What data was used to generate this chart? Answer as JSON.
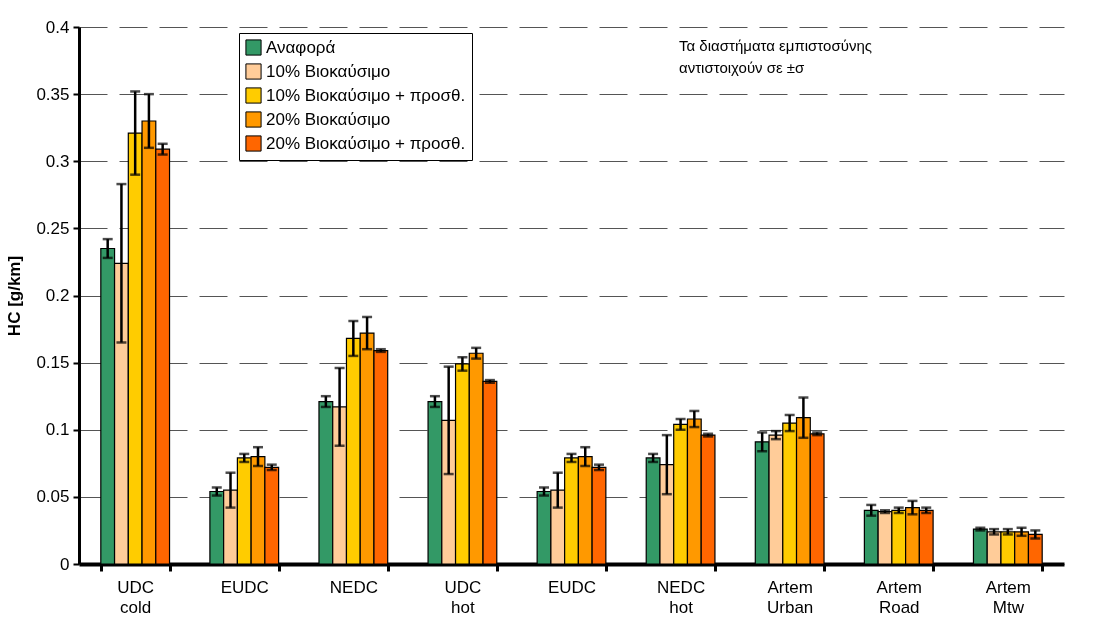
{
  "chart_data": {
    "type": "bar",
    "ylabel": "HC [g/km]",
    "categories": [
      "UDC cold",
      "EUDC",
      "NEDC",
      "UDC hot",
      "EUDC",
      "NEDC hot",
      "Artem Urban",
      "Artem Road",
      "Artem Mtw"
    ],
    "series": [
      {
        "name": "Αναφορά",
        "color": "#339966",
        "values": [
          0.235,
          0.054,
          0.121,
          0.121,
          0.054,
          0.079,
          0.091,
          0.04,
          0.026
        ],
        "errors": [
          0.007,
          0.003,
          0.004,
          0.004,
          0.003,
          0.003,
          0.007,
          0.004,
          0.001
        ]
      },
      {
        "name": "10% Βιοκαύσιμο",
        "color": "#ffcc99",
        "values": [
          0.224,
          0.055,
          0.117,
          0.107,
          0.055,
          0.074,
          0.096,
          0.039,
          0.024
        ],
        "errors": [
          0.059,
          0.013,
          0.029,
          0.04,
          0.013,
          0.022,
          0.003,
          0.001,
          0.002
        ]
      },
      {
        "name": "10% Βιοκαύσιμο + προσθ.",
        "color": "#ffcc00",
        "values": [
          0.321,
          0.079,
          0.168,
          0.149,
          0.079,
          0.104,
          0.105,
          0.04,
          0.024
        ],
        "errors": [
          0.031,
          0.003,
          0.013,
          0.005,
          0.003,
          0.004,
          0.006,
          0.002,
          0.002
        ]
      },
      {
        "name": "20% Βιοκαύσιμο",
        "color": "#ff9900",
        "values": [
          0.33,
          0.08,
          0.172,
          0.157,
          0.08,
          0.108,
          0.109,
          0.042,
          0.024
        ],
        "errors": [
          0.02,
          0.007,
          0.012,
          0.004,
          0.007,
          0.006,
          0.015,
          0.005,
          0.003
        ]
      },
      {
        "name": "20% Βιοκαύσιμο + προσθ.",
        "color": "#ff6600",
        "values": [
          0.309,
          0.072,
          0.159,
          0.136,
          0.072,
          0.096,
          0.097,
          0.04,
          0.022
        ],
        "errors": [
          0.004,
          0.002,
          0.001,
          0.001,
          0.002,
          0.001,
          0.001,
          0.002,
          0.003
        ]
      }
    ],
    "ylim": [
      0,
      0.4
    ],
    "yticks": [
      0,
      0.05,
      0.1,
      0.15,
      0.2,
      0.25,
      0.3,
      0.35,
      0.4
    ],
    "grid": "y",
    "legend": "top",
    "annotations": [
      "Τα διαστήματα εμπιστοσύνης",
      "αντιστοιχούν σε ±σ"
    ]
  }
}
